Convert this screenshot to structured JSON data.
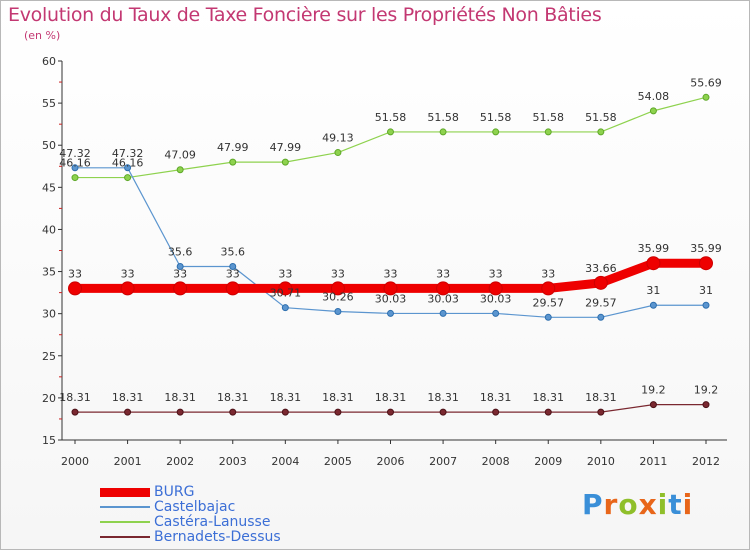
{
  "title": "Evolution du Taux de Taxe Foncière sur les Propriétés Non Bâties",
  "unit_label": "(en %)",
  "brand": {
    "text": "Proxiti",
    "colors": [
      "#3a8fd8",
      "#e8661a",
      "#8fbf2a",
      "#e8661a",
      "#8fbf2a",
      "#3a8fd8",
      "#e8661a"
    ]
  },
  "colors": {
    "title": "#c33872",
    "legend_text": "#3c6fd6",
    "BURG": "#ee0000",
    "Castelbajac": "#5b95cf",
    "Castéra-Lanusse": "#8ed24e",
    "Bernadets-Dessus": "#7a2830"
  },
  "chart_data": {
    "type": "line",
    "categories": [
      "2000",
      "2001",
      "2002",
      "2003",
      "2004",
      "2005",
      "2006",
      "2007",
      "2008",
      "2009",
      "2010",
      "2011",
      "2012"
    ],
    "ylim": [
      15,
      60
    ],
    "yticks": [
      "15",
      "20",
      "25",
      "30",
      "35",
      "40",
      "45",
      "50",
      "55",
      "60"
    ],
    "series": [
      {
        "name": "BURG",
        "values": [
          33,
          33,
          33,
          33,
          33,
          33,
          33,
          33,
          33,
          33,
          33.66,
          35.99,
          35.99
        ],
        "labels": [
          "33",
          "33",
          "33",
          "33",
          "33",
          "33",
          "33",
          "33",
          "33",
          "33",
          "33.66",
          "35.99",
          "35.99"
        ]
      },
      {
        "name": "Castelbajac",
        "values": [
          47.32,
          47.32,
          35.6,
          35.6,
          30.71,
          30.26,
          30.03,
          30.03,
          30.03,
          29.57,
          29.57,
          31,
          31
        ],
        "labels": [
          "47.32",
          "47.32",
          "35.6",
          "35.6",
          "30.71",
          "30.26",
          "30.03",
          "30.03",
          "30.03",
          "29.57",
          "29.57",
          "31",
          "31"
        ]
      },
      {
        "name": "Castéra-Lanusse",
        "values": [
          46.16,
          46.16,
          47.09,
          47.99,
          47.99,
          49.13,
          51.58,
          51.58,
          51.58,
          51.58,
          51.58,
          54.08,
          55.69
        ],
        "labels": [
          "46.16",
          "46.16",
          "47.09",
          "47.99",
          "47.99",
          "49.13",
          "51.58",
          "51.58",
          "51.58",
          "51.58",
          "51.58",
          "54.08",
          "55.69"
        ]
      },
      {
        "name": "Bernadets-Dessus",
        "values": [
          18.31,
          18.31,
          18.31,
          18.31,
          18.31,
          18.31,
          18.31,
          18.31,
          18.31,
          18.31,
          18.31,
          19.2,
          19.2
        ],
        "labels": [
          "18.31",
          "18.31",
          "18.31",
          "18.31",
          "18.31",
          "18.31",
          "18.31",
          "18.31",
          "18.31",
          "18.31",
          "18.31",
          "19.2",
          "19.2"
        ]
      }
    ]
  }
}
